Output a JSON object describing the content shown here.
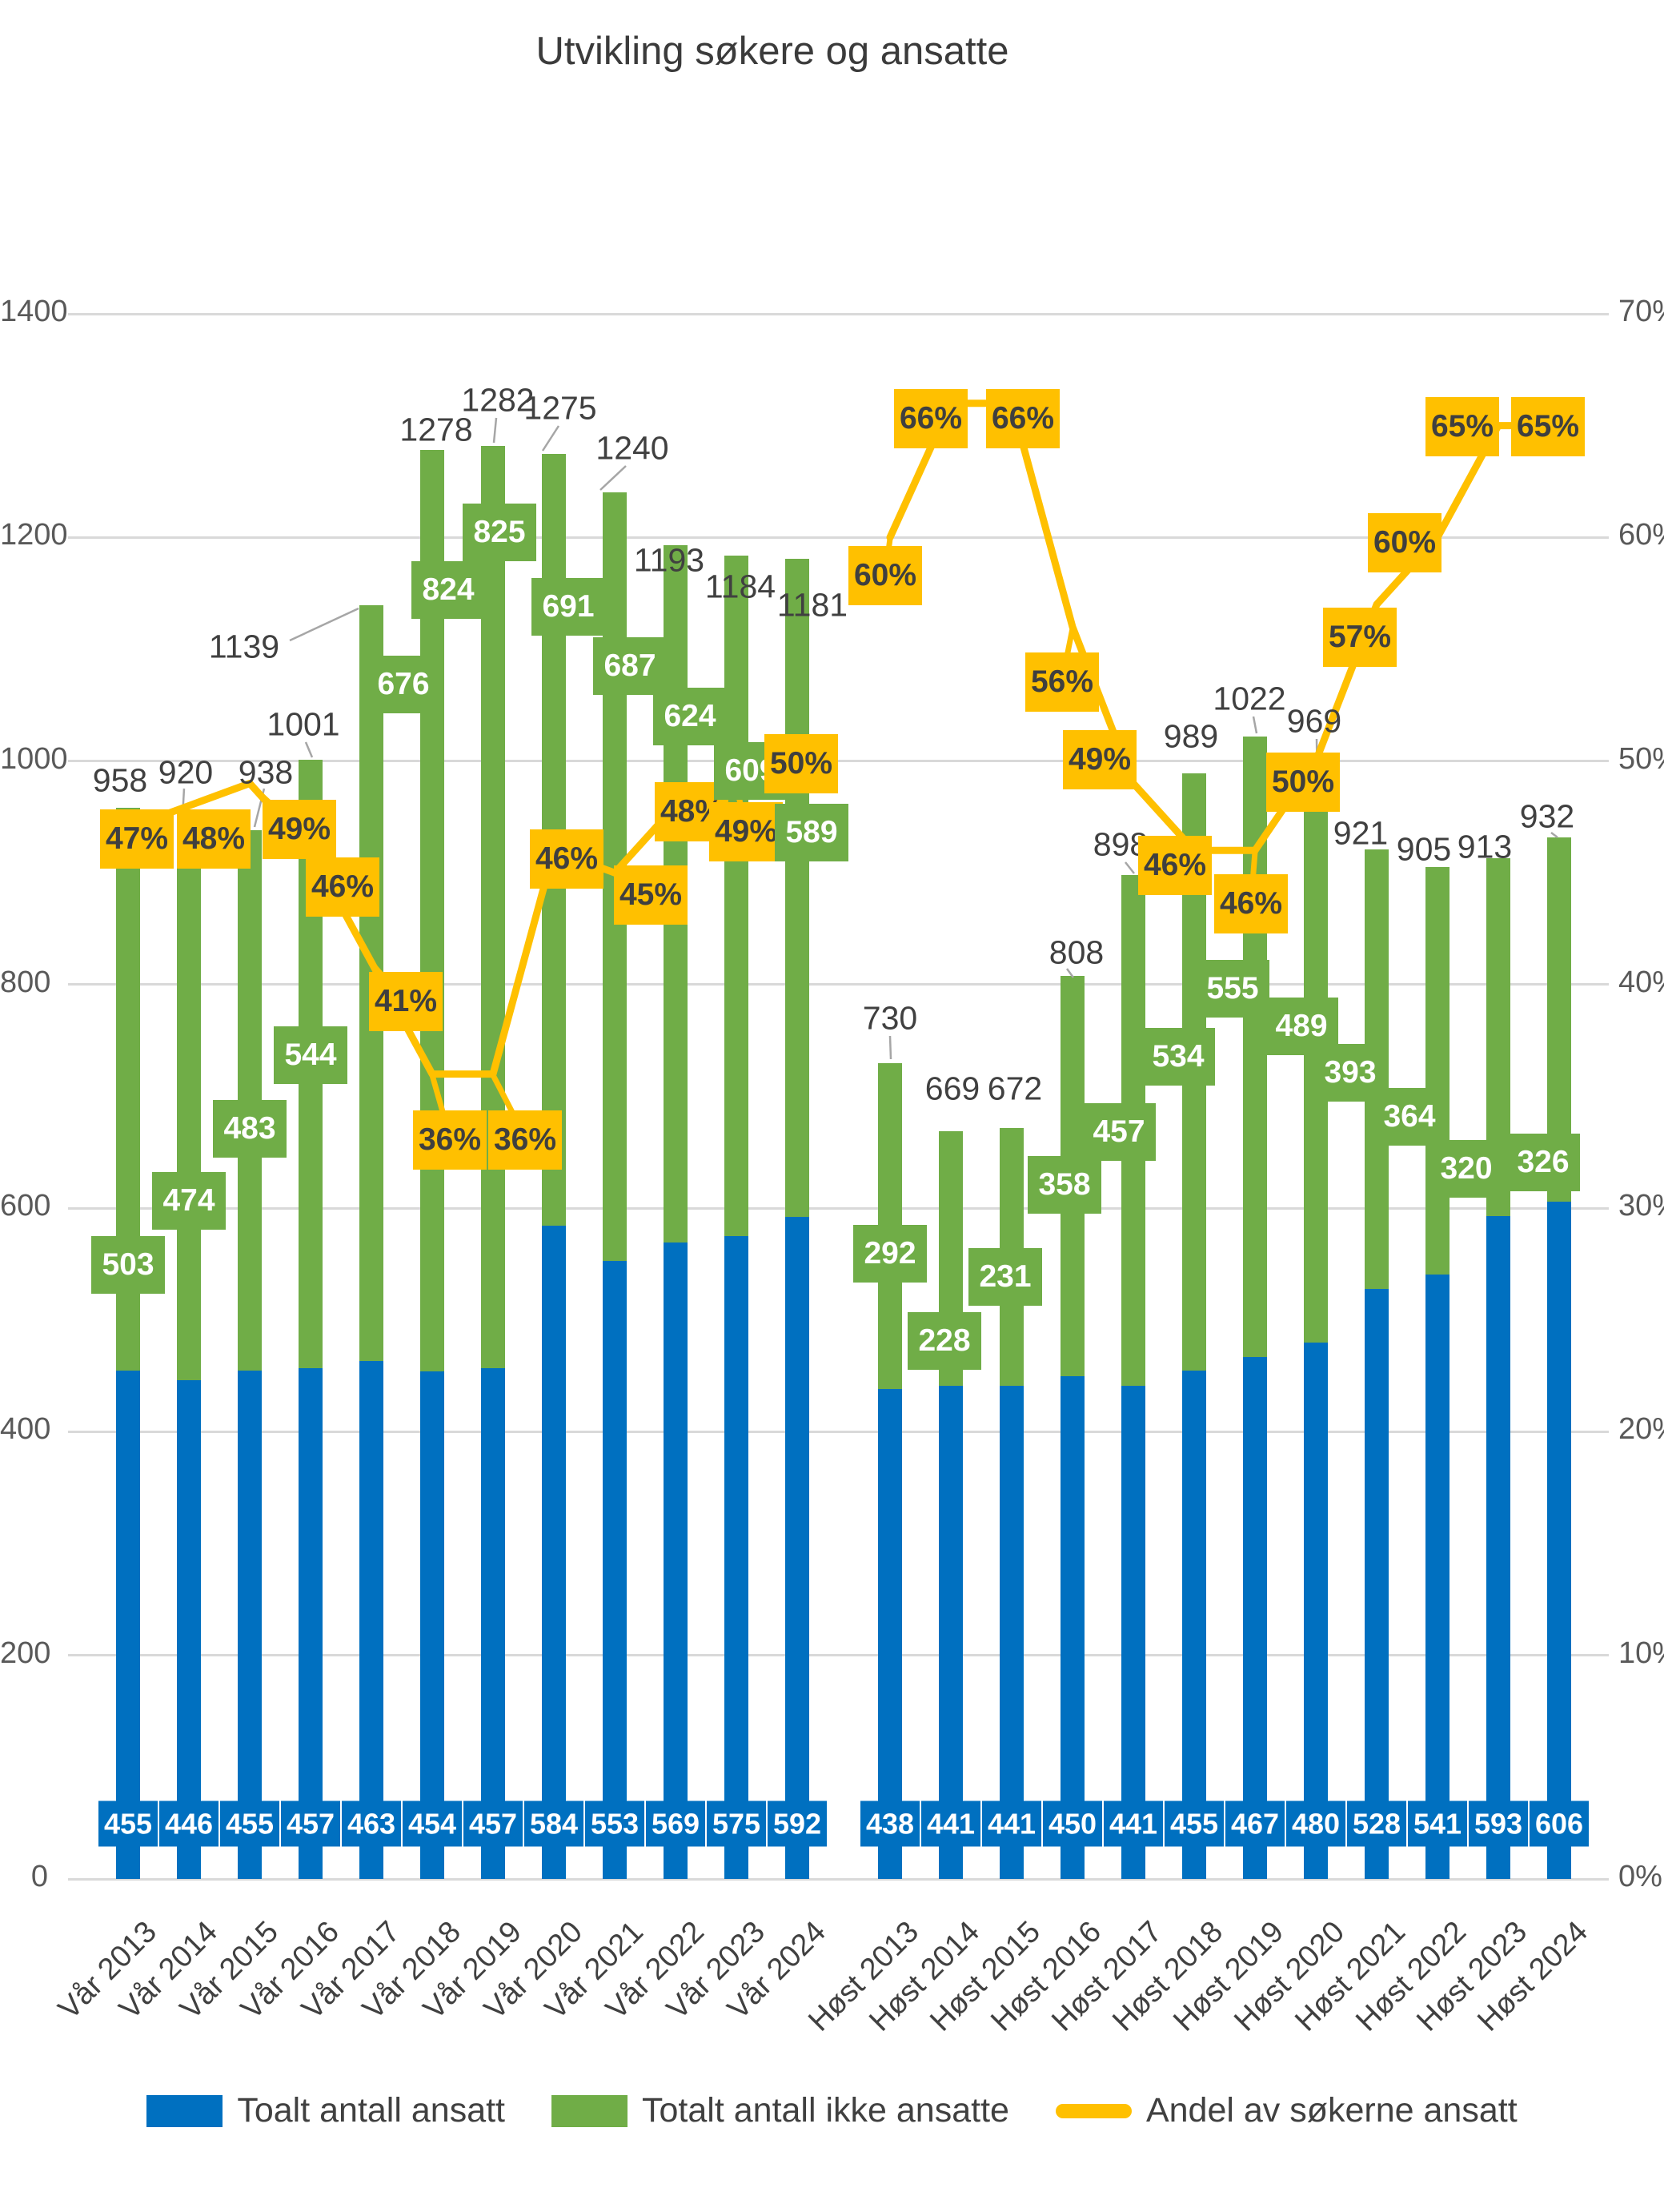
{
  "title": "Utvikling søkere og ansatte",
  "colors": {
    "ansatt_blue": "#0070C0",
    "ikke_ansatt_green": "#70AD47",
    "andel_yellow": "#FFC000",
    "gridline": "#D9D9D9",
    "leader_gray": "#A6A6A6",
    "label_dark": "#404040",
    "axis_text": "#595959"
  },
  "legend": {
    "ansatt": "Toalt antall ansatt",
    "ikke_ansatt": "Totalt antall ikke ansatte",
    "andel": "Andel av søkerne ansatt"
  },
  "chart_data": {
    "type": "bar+line combo (stacked bars, two seasonal groups, secondary percent axis)",
    "left_axis": {
      "min": 0,
      "max": 1400,
      "step": 200,
      "ticks": [
        "0",
        "200",
        "400",
        "600",
        "800",
        "1000",
        "1200",
        "1400"
      ]
    },
    "right_axis": {
      "min_pct": 0,
      "max_pct": 70,
      "step_pct": 10,
      "ticks": [
        "0%",
        "10%",
        "20%",
        "30%",
        "40%",
        "50%",
        "60%",
        "70%"
      ]
    },
    "grid": "horizontal gridlines on",
    "legend_position": "bottom",
    "groups": [
      {
        "season": "Vår",
        "categories": [
          "Vår 2013",
          "Vår 2014",
          "Vår 2015",
          "Vår 2016",
          "Vår 2017",
          "Vår 2018",
          "Vår 2019",
          "Vår 2020",
          "Vår 2021",
          "Vår 2022",
          "Vår 2023",
          "Vår 2024"
        ],
        "ansatt": [
          455,
          446,
          455,
          457,
          463,
          454,
          457,
          584,
          553,
          569,
          575,
          592
        ],
        "ikke_ansatt": [
          503,
          474,
          483,
          544,
          676,
          824,
          825,
          691,
          687,
          624,
          609,
          589
        ],
        "total": [
          958,
          920,
          938,
          1001,
          1139,
          1278,
          1282,
          1275,
          1240,
          1193,
          1184,
          1181
        ],
        "andel_pct": [
          47,
          48,
          49,
          46,
          41,
          36,
          36,
          46,
          45,
          48,
          49,
          50
        ]
      },
      {
        "season": "Høst",
        "categories": [
          "Høst 2013",
          "Høst 2014",
          "Høst 2015",
          "Høst 2016",
          "Høst 2017",
          "Høst 2018",
          "Høst 2019",
          "Høst 2020",
          "Høst 2021",
          "Høst 2022",
          "Høst 2023",
          "Høst 2024"
        ],
        "ansatt": [
          438,
          441,
          441,
          450,
          441,
          455,
          467,
          480,
          528,
          541,
          593,
          606
        ],
        "ikke_ansatt": [
          292,
          228,
          231,
          358,
          457,
          534,
          555,
          489,
          393,
          364,
          320,
          326
        ],
        "total": [
          730,
          669,
          672,
          808,
          898,
          989,
          1022,
          969,
          921,
          905,
          913,
          932
        ],
        "andel_pct": [
          60,
          66,
          66,
          56,
          49,
          46,
          46,
          50,
          57,
          60,
          65,
          65
        ]
      }
    ]
  }
}
